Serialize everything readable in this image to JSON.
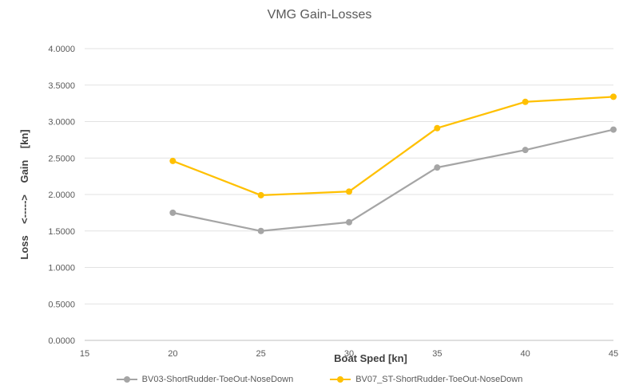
{
  "chart_data": {
    "type": "line",
    "title": "VMG Gain-Losses",
    "xlabel": "Boat Sped [kn]",
    "ylabel": "Loss    <----->    Gain    [kn]",
    "x": [
      20,
      25,
      30,
      35,
      40,
      45
    ],
    "xlim": [
      15,
      45
    ],
    "xticks": [
      "15",
      "20",
      "25",
      "30",
      "35",
      "40",
      "45"
    ],
    "ylim": [
      0,
      4
    ],
    "yticks": [
      "0.0000",
      "0.5000",
      "1.0000",
      "1.5000",
      "2.0000",
      "2.5000",
      "3.0000",
      "3.5000",
      "4.0000"
    ],
    "grid": "horizontal",
    "legend": "bottom",
    "series": [
      {
        "name": "BV03-ShortRudder-ToeOut-NoseDown",
        "color": "#A5A5A5",
        "values": [
          1.75,
          1.5,
          1.62,
          2.37,
          2.61,
          2.89
        ]
      },
      {
        "name": "BV07_ST-ShortRudder-ToeOut-NoseDown",
        "color": "#FFC000",
        "values": [
          2.46,
          1.99,
          2.04,
          2.91,
          3.27,
          3.34
        ]
      }
    ]
  }
}
